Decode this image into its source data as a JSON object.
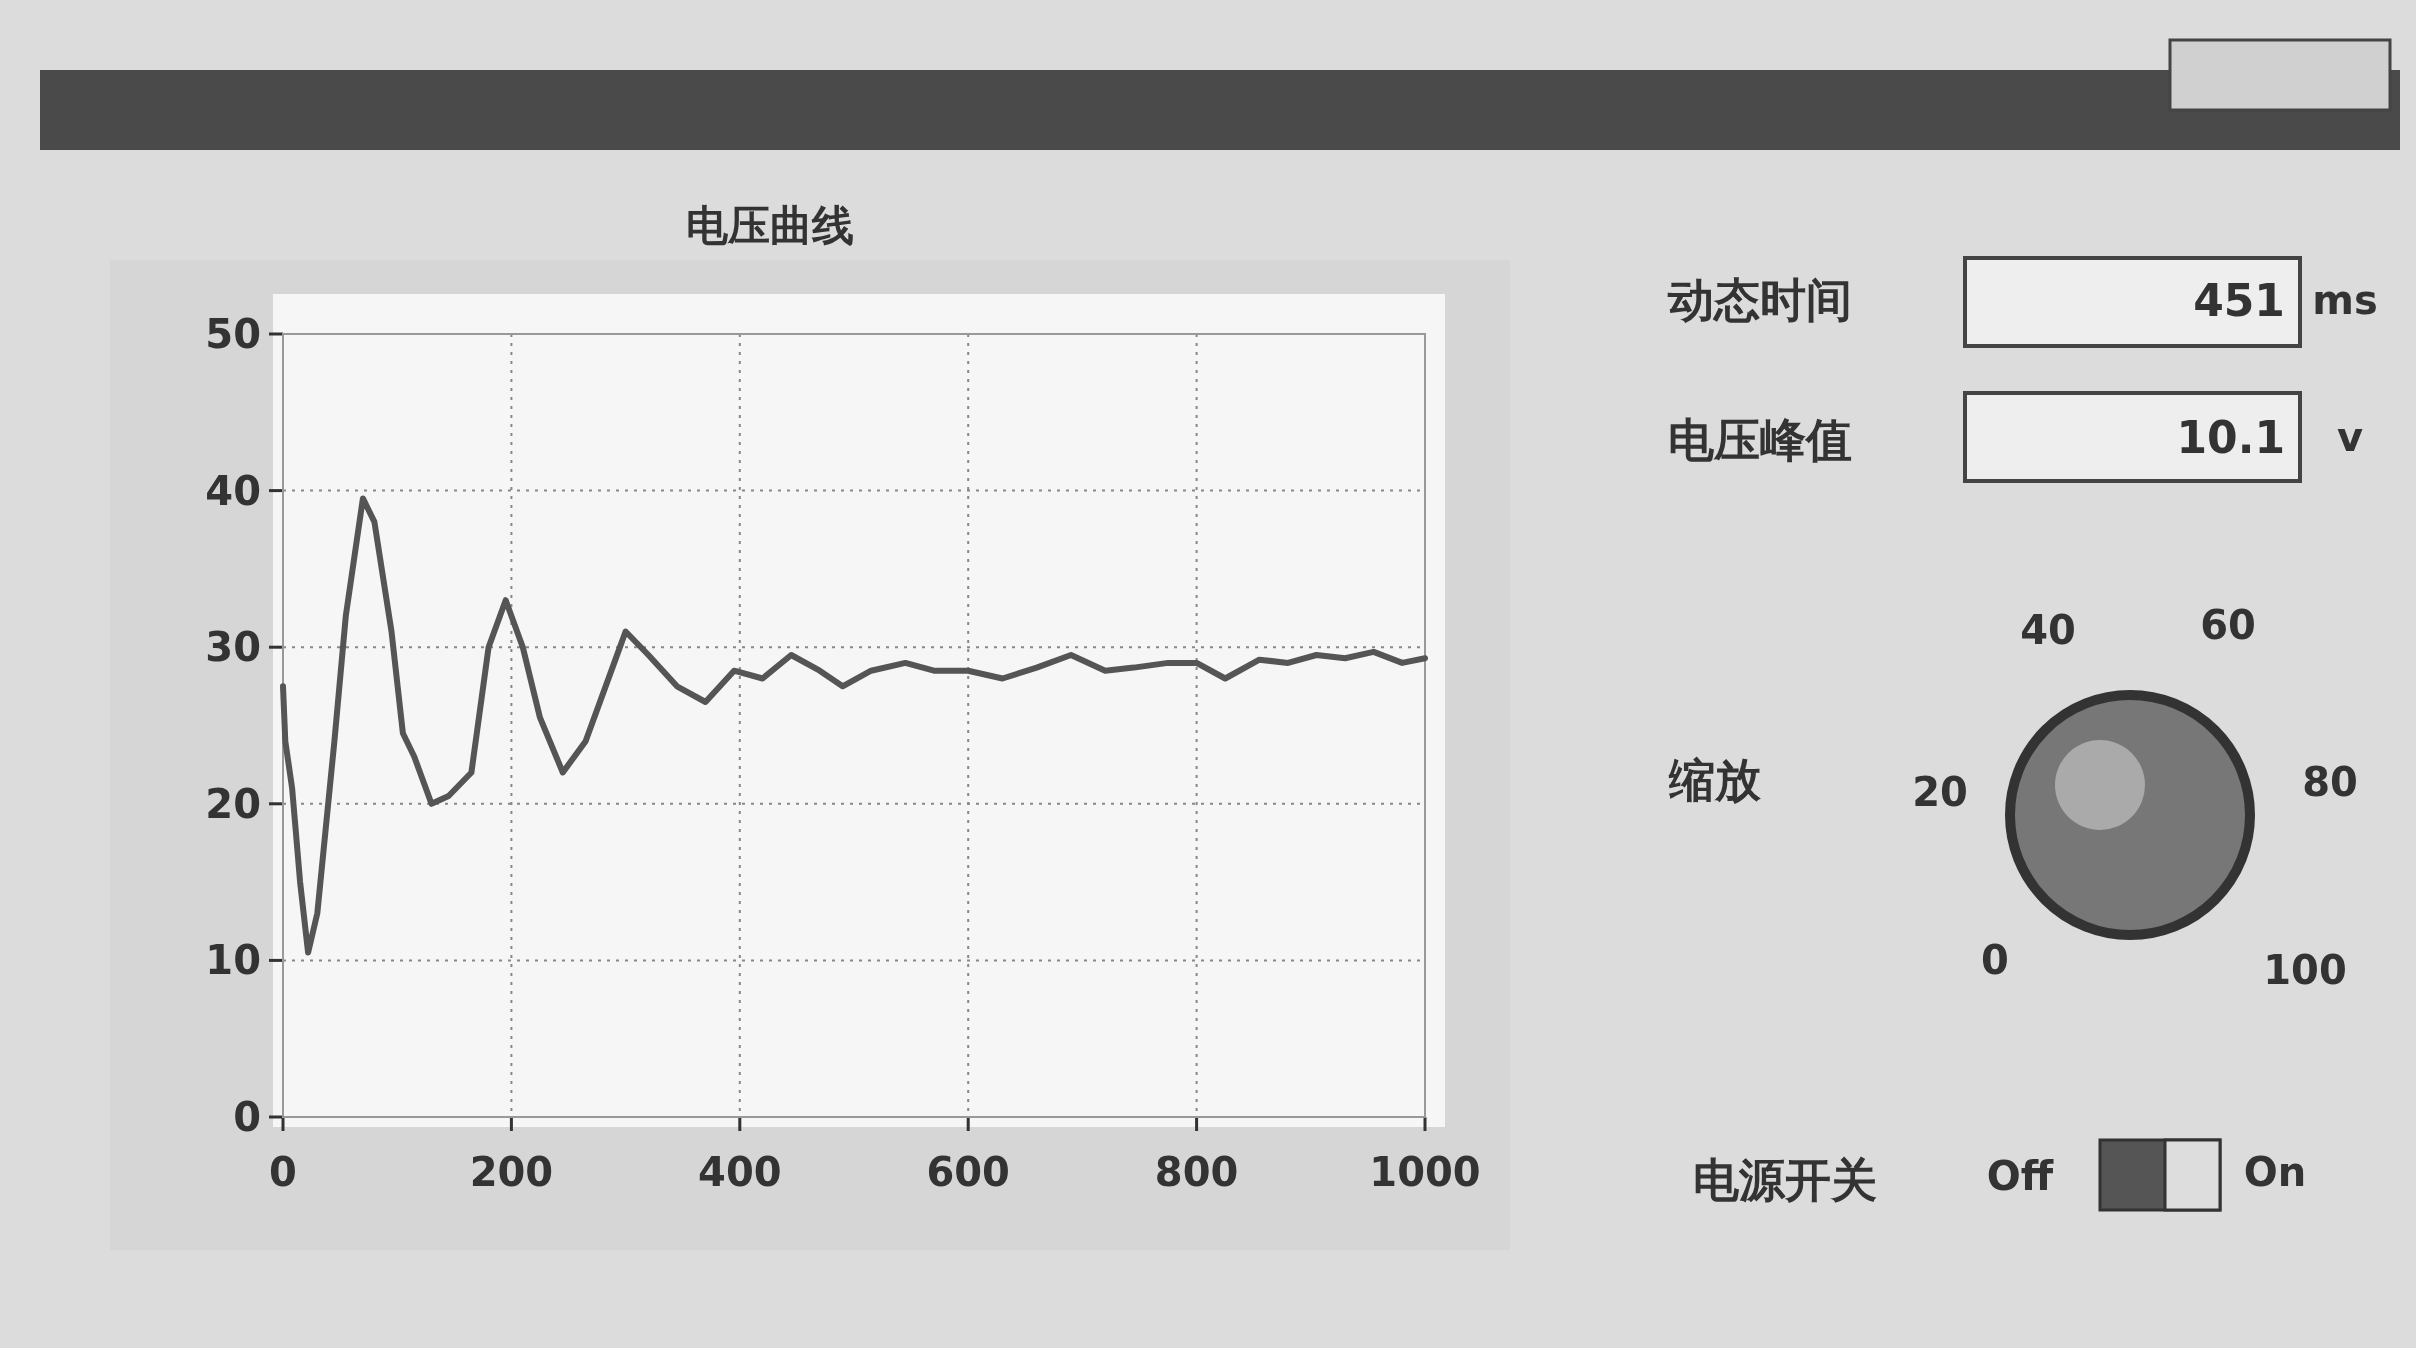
{
  "chart_data": [
    {
      "type": "line",
      "title": "电压曲线",
      "x": [
        0,
        2,
        8,
        15,
        22,
        30,
        45,
        55,
        70,
        80,
        95,
        105,
        115,
        130,
        145,
        165,
        180,
        195,
        210,
        225,
        245,
        265,
        290,
        300,
        320,
        345,
        370,
        395,
        420,
        445,
        470,
        490,
        515,
        545,
        570,
        600,
        630,
        660,
        690,
        720,
        745,
        775,
        800,
        825,
        855,
        880,
        905,
        930,
        955,
        980,
        1000
      ],
      "series": [
        {
          "color": "#555555",
          "values": [
            27.5,
            24,
            21,
            15,
            10.5,
            13,
            24,
            32,
            39.5,
            38,
            31,
            24.5,
            23,
            20,
            20.5,
            22,
            30,
            33,
            30,
            25.5,
            22,
            24,
            29,
            31,
            29.5,
            27.5,
            26.5,
            28.5,
            28,
            29.5,
            28.5,
            27.5,
            28.5,
            29,
            28.5,
            28.5,
            28,
            28.7,
            29.5,
            28.5,
            28.7,
            29,
            29,
            28,
            29.2,
            29,
            29.5,
            29.3,
            29.7,
            29,
            29.3
          ]
        }
      ],
      "xlim": [
        0,
        1000
      ],
      "xticks": [
        0,
        200,
        400,
        600,
        800,
        1000
      ],
      "ylim": [
        0,
        50
      ],
      "yticks": [
        0,
        10,
        20,
        30,
        40,
        50
      ],
      "grid": true,
      "line_style": "solid",
      "marker": "none"
    },
    {
      "type": "other",
      "annotations": [
        "动态时间",
        "451",
        "ms",
        "电压峰值",
        "10.1",
        "v",
        "缩放",
        "0",
        "20",
        "40",
        "60",
        "80",
        "100",
        "电源开关",
        "Off",
        "On"
      ]
    }
  ]
}
